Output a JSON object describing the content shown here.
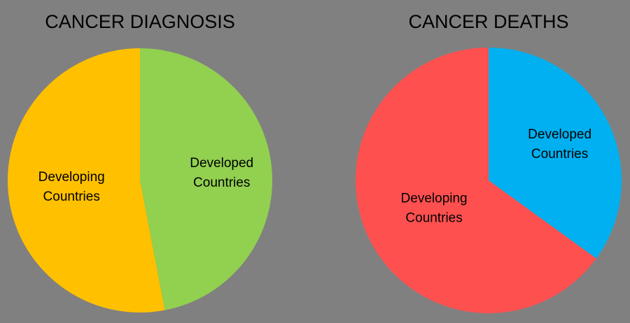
{
  "chart_data": [
    {
      "type": "pie",
      "title": "CANCER DIAGNOSIS",
      "categories": [
        "Developed Countries",
        "Developing Countries"
      ],
      "values": [
        47,
        53
      ],
      "value_unit": "percent",
      "colors": [
        "#92d050",
        "#ffc000"
      ],
      "start": "12 o'clock",
      "direction": "clockwise",
      "legend": "none",
      "data_labels": [
        [
          "Developed",
          "Countries"
        ],
        [
          "Developing",
          "Countries"
        ]
      ]
    },
    {
      "type": "pie",
      "title": "CANCER DEATHS",
      "categories": [
        "Developed Countries",
        "Developing Countries"
      ],
      "values": [
        35,
        65
      ],
      "value_unit": "percent",
      "colors": [
        "#00b0f0",
        "#ff5050"
      ],
      "start": "12 o'clock",
      "direction": "clockwise",
      "legend": "none",
      "data_labels": [
        [
          "Developed",
          "Countries"
        ],
        [
          "Developing",
          "Countries"
        ]
      ]
    }
  ]
}
